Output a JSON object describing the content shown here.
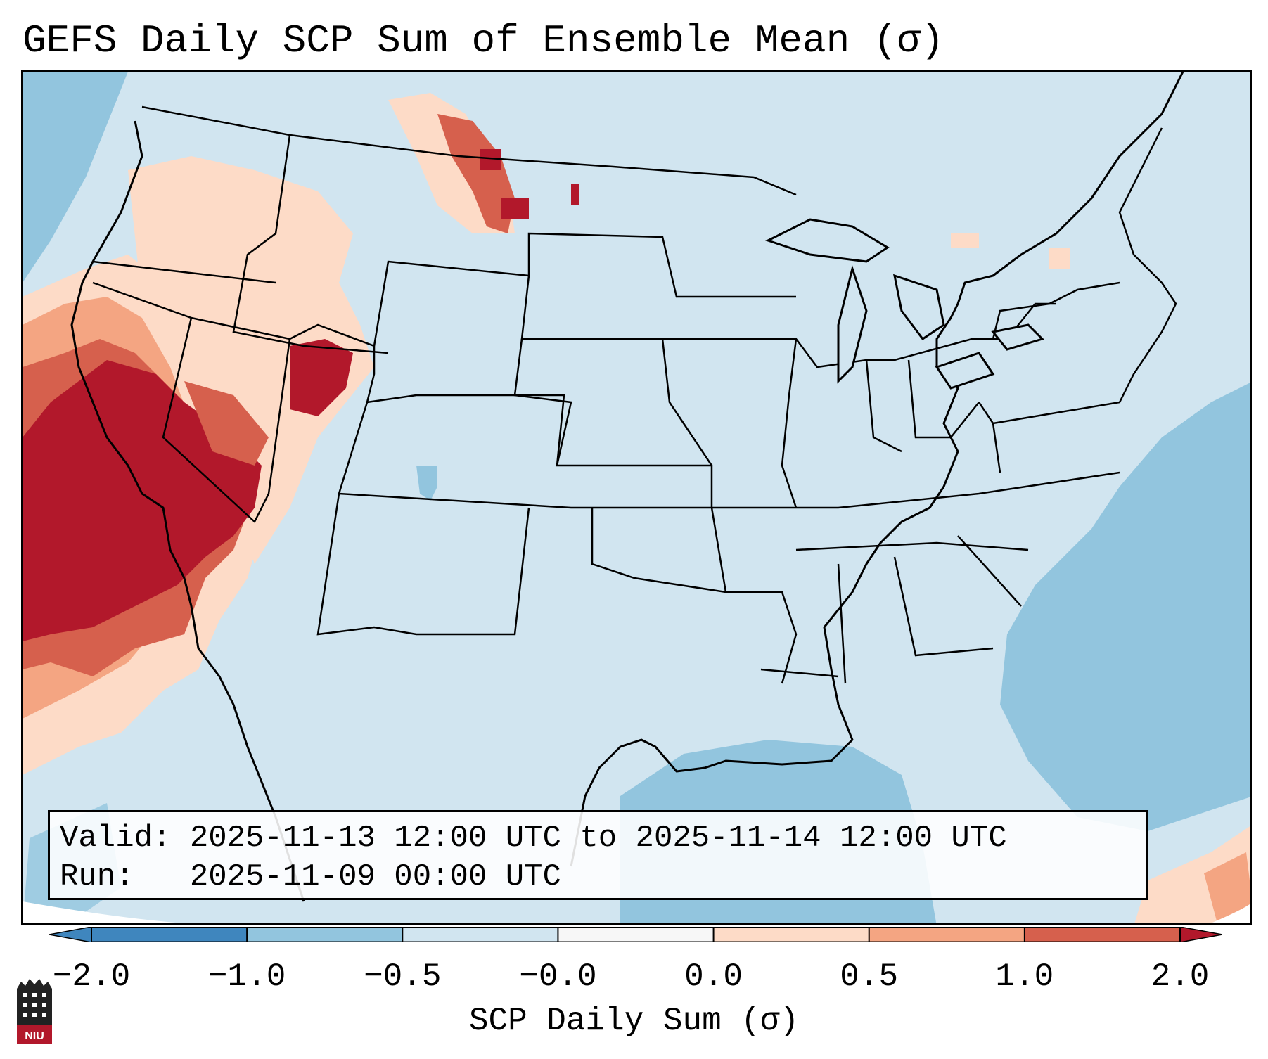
{
  "title": "GEFS Daily SCP Sum of Ensemble Mean (σ)",
  "info": {
    "valid_label": "Valid:",
    "valid_value": "2025-11-13 12:00 UTC to 2025-11-14 12:00 UTC",
    "run_label": "Run:",
    "run_value": "2025-11-09 00:00 UTC"
  },
  "colorbar": {
    "label": "SCP Daily Sum (σ)",
    "ticks": [
      "−2.0",
      "−1.0",
      "−0.5",
      "−0.0",
      "0.0",
      "0.5",
      "1.0",
      "2.0"
    ],
    "colors": [
      "#3f86be",
      "#92c5de",
      "#d1e5f0",
      "#f7f7f7",
      "#fddbc7",
      "#f4a582",
      "#d6604d",
      "#b2182b"
    ]
  },
  "map": {
    "ocean_color": "#92c5de",
    "land_color": "#d1e5f0",
    "severe_color": "#b2182b"
  },
  "logo_text": "NIU"
}
